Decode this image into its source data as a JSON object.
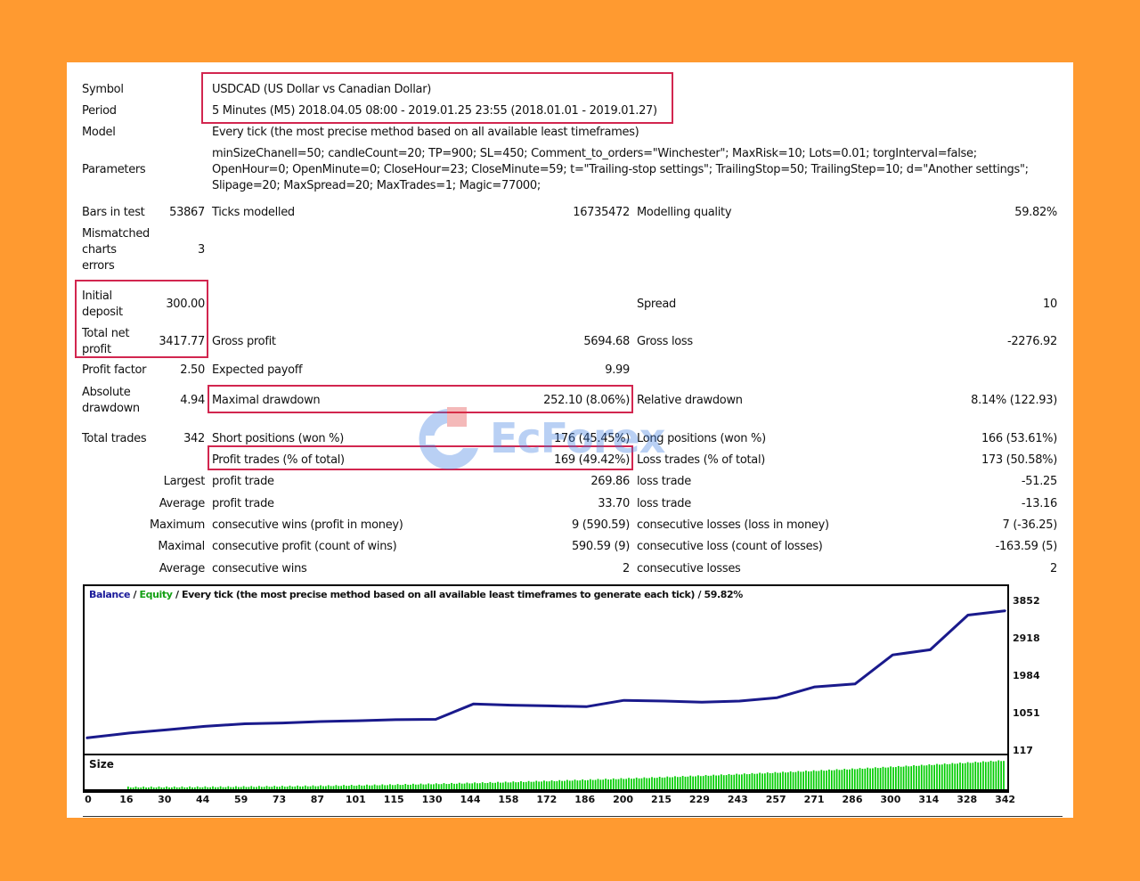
{
  "header": {
    "symbol_label": "Symbol",
    "symbol_value": "USDCAD (US Dollar vs Canadian Dollar)",
    "period_label": "Period",
    "period_value": "5 Minutes (M5) 2018.04.05 08:00 - 2019.01.25 23:55 (2018.01.01 - 2019.01.27)",
    "model_label": "Model",
    "model_value": "Every tick (the most precise method based on all available least timeframes)",
    "parameters_label": "Parameters",
    "parameters_lines": [
      "minSizeChanell=50; candleCount=20; TP=900; SL=450; Comment_to_orders=\"Winchester\"; MaxRisk=10; Lots=0.01; torgInterval=false;",
      "OpenHour=0; OpenMinute=0; CloseHour=23; CloseMinute=59; t=\"Trailing-stop settings\"; TrailingStop=50; TrailingStep=10; d=\"Another settings\";",
      "Slipage=20; MaxSpread=20; MaxTrades=1; Magic=77000;"
    ]
  },
  "stats": {
    "bars_label": "Bars in test",
    "bars_value": "53867",
    "ticks_label": "Ticks modelled",
    "ticks_value": "16735472",
    "quality_label": "Modelling quality",
    "quality_value": "59.82%",
    "mismatch_label_1": "Mismatched",
    "mismatch_label_2": "charts",
    "mismatch_label_3": "errors",
    "mismatch_value": "3",
    "initial_label_1": "Initial",
    "initial_label_2": "deposit",
    "initial_value": "300.00",
    "spread_label": "Spread",
    "spread_value": "10",
    "netprofit_label_1": "Total net",
    "netprofit_label_2": "profit",
    "netprofit_value": "3417.77",
    "grossprofit_label": "Gross profit",
    "grossprofit_value": "5694.68",
    "grossloss_label": "Gross loss",
    "grossloss_value": "-2276.92",
    "pf_label": "Profit factor",
    "pf_value": "2.50",
    "ep_label": "Expected payoff",
    "ep_value": "9.99",
    "absdd_label_1": "Absolute",
    "absdd_label_2": "drawdown",
    "absdd_value": "4.94",
    "maxdd_label": "Maximal drawdown",
    "maxdd_value": "252.10 (8.06%)",
    "reldd_label": "Relative drawdown",
    "reldd_value": "8.14% (122.93)",
    "trades_label": "Total trades",
    "trades_value": "342",
    "short_label": "Short positions (won %)",
    "short_value": "176 (45.45%)",
    "long_label": "Long positions (won %)",
    "long_value": "166 (53.61%)",
    "profittrades_label": "Profit trades (% of total)",
    "profittrades_value": "169 (49.42%)",
    "losstrades_label": "Loss trades (% of total)",
    "losstrades_value": "173 (50.58%)",
    "largest_label": "Largest",
    "largest_profit_label": "profit trade",
    "largest_profit_value": "269.86",
    "largest_loss_label": "loss trade",
    "largest_loss_value": "-51.25",
    "average_label": "Average",
    "average_profit_label": "profit trade",
    "average_profit_value": "33.70",
    "average_loss_label": "loss trade",
    "average_loss_value": "-13.16",
    "maximum_label": "Maximum",
    "max_wins_label": "consecutive wins (profit in money)",
    "max_wins_value": "9 (590.59)",
    "max_losses_label": "consecutive losses (loss in money)",
    "max_losses_value": "7 (-36.25)",
    "maximal_label": "Maximal",
    "maximal_profit_label": "consecutive profit (count of wins)",
    "maximal_profit_value": "590.59 (9)",
    "maximal_loss_label": "consecutive loss (count of losses)",
    "maximal_loss_value": "-163.59 (5)",
    "avg_consec_label": "Average",
    "avg_wins_label": "consecutive wins",
    "avg_wins_value": "2",
    "avg_losses_label": "consecutive losses",
    "avg_losses_value": "2"
  },
  "chart": {
    "legend_balance": "Balance",
    "legend_sep1": " / ",
    "legend_equity": "Equity",
    "legend_rest": " / Every tick (the most precise method based on all available least timeframes to generate each tick) / 59.82%",
    "y_labels": [
      "3852",
      "2918",
      "1984",
      "1051",
      "117"
    ],
    "size_label": "Size",
    "x_labels": [
      "0",
      "16",
      "30",
      "44",
      "59",
      "73",
      "87",
      "101",
      "115",
      "130",
      "144",
      "158",
      "172",
      "186",
      "200",
      "215",
      "229",
      "243",
      "257",
      "271",
      "286",
      "300",
      "314",
      "328",
      "342"
    ],
    "balance_color": "#1a1a8c",
    "size_color": "#00cc00"
  },
  "chart_data": {
    "type": "line",
    "series": [
      {
        "name": "Balance",
        "x": [
          0,
          16,
          30,
          44,
          59,
          73,
          87,
          101,
          115,
          130,
          144,
          158,
          172,
          186,
          200,
          215,
          229,
          243,
          257,
          271,
          286,
          300,
          314,
          328,
          342
        ],
        "values": [
          300,
          430,
          520,
          610,
          680,
          700,
          740,
          760,
          790,
          800,
          1210,
          1180,
          1160,
          1140,
          1310,
          1290,
          1260,
          1290,
          1380,
          1670,
          1750,
          2530,
          2670,
          3600,
          3717
        ]
      }
    ],
    "ylim": [
      117,
      3852
    ]
  },
  "watermark": {
    "text": "EcForex"
  }
}
